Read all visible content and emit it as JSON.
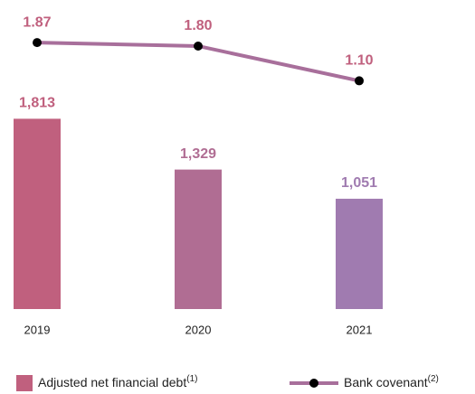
{
  "chart_data": {
    "type": "bar-line",
    "categories": [
      "2019",
      "2020",
      "2021"
    ],
    "series": [
      {
        "name": "Adjusted net financial debt",
        "footnote": "(1)",
        "type": "bar",
        "color": "#c0607e",
        "colors": [
          "#c0607e",
          "#b06d93",
          "#a07bb0"
        ],
        "values": [
          1813,
          1329,
          1051
        ],
        "value_labels": [
          "1,813",
          "1,329",
          "1,051"
        ]
      },
      {
        "name": "Bank covenant",
        "footnote": "(2)",
        "type": "line",
        "axis": "y2",
        "color": "#a86f9b",
        "marker_color": "#000000",
        "label_color": "#c0607e",
        "values": [
          1.87,
          1.8,
          1.1
        ],
        "value_labels": [
          "1.87",
          "1.80",
          "1.10"
        ]
      }
    ],
    "ylim": [
      0,
      2600
    ],
    "y2lim": [
      -3.5,
      2
    ]
  }
}
